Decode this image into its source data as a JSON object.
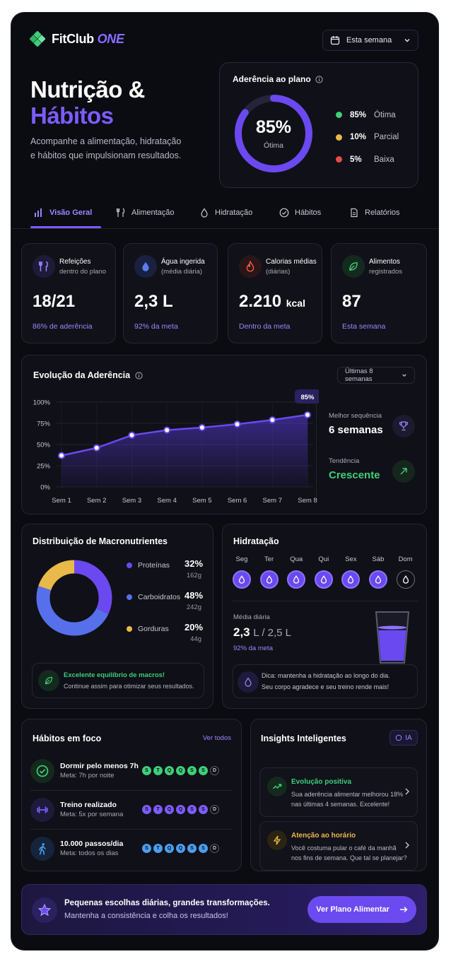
{
  "brand": {
    "name": "FitClub",
    "suffix": "ONE"
  },
  "period_select": {
    "value": "Esta semana"
  },
  "hero": {
    "title_line1": "Nutrição &",
    "title_line2": "Hábitos",
    "subtitle": "Acompanhe a alimentação, hidratação e hábitos que impulsionam resultados."
  },
  "adherence": {
    "title": "Aderência ao plano",
    "value": "85%",
    "value_label": "Ótima",
    "fraction": 0.85,
    "legend": [
      {
        "pct": "85%",
        "label": "Ótima",
        "color": "#3ecf7a"
      },
      {
        "pct": "10%",
        "label": "Parcial",
        "color": "#e9b949"
      },
      {
        "pct": "5%",
        "label": "Baixa",
        "color": "#e84a4a"
      }
    ]
  },
  "tabs": [
    "Visão Geral",
    "Alimentação",
    "Hidratação",
    "Hábitos",
    "Relatórios"
  ],
  "kpis": [
    {
      "title": "Refeições",
      "sub": "dentro do plano",
      "value": "18/21",
      "unit": "",
      "foot": "86% de aderência",
      "foot_color": "#9f86ff"
    },
    {
      "title": "Água ingerida",
      "sub": "(média diária)",
      "value": "2,3 L",
      "unit": "",
      "foot": "92% da meta",
      "foot_color": "#9f86ff"
    },
    {
      "title": "Calorias médias",
      "sub": "(diárias)",
      "value": "2.210",
      "unit": "kcal",
      "foot": "Dentro da meta",
      "foot_color": "#9f86ff"
    },
    {
      "title": "Alimentos",
      "sub": "registrados",
      "value": "87",
      "unit": "",
      "foot": "Esta semana",
      "foot_color": "#9f86ff"
    }
  ],
  "evolution": {
    "title": "Evolução da Aderência",
    "range": "Últimas 8 semanas",
    "best_label": "Melhor sequência",
    "best_value": "6 semanas",
    "trend_label": "Tendência",
    "trend_value": "Crescente",
    "callout": "85%"
  },
  "chart_data": {
    "type": "area",
    "categories": [
      "Sem 1",
      "Sem 2",
      "Sem 3",
      "Sem 4",
      "Sem 5",
      "Sem 6",
      "Sem 7",
      "Sem 8"
    ],
    "values": [
      37,
      46,
      61,
      67,
      70,
      74,
      79,
      85
    ],
    "y_ticks": [
      "0%",
      "25%",
      "50%",
      "75%",
      "100%"
    ],
    "ylim": [
      0,
      100
    ],
    "grid": true
  },
  "macros": {
    "title": "Distribuição de Macronutrientes",
    "items": [
      {
        "name": "Proteínas",
        "pct": "32%",
        "grams": "162g",
        "value": 32,
        "color": "#6a49f0"
      },
      {
        "name": "Carboidratos",
        "pct": "48%",
        "grams": "242g",
        "value": 48,
        "color": "#5670ec"
      },
      {
        "name": "Gorduras",
        "pct": "20%",
        "grams": "44g",
        "value": 20,
        "color": "#e9b949"
      }
    ],
    "tip_title": "Excelente equilíbrio de macros!",
    "tip_text": "Continue assim para otimizar seus resultados."
  },
  "hydration": {
    "title": "Hidratação",
    "days": [
      "Seg",
      "Ter",
      "Qua",
      "Qui",
      "Sex",
      "Sáb",
      "Dom"
    ],
    "done": [
      true,
      true,
      true,
      true,
      true,
      true,
      false
    ],
    "avg_label": "Média diária",
    "avg_value": "2,3",
    "avg_unit": "L / 2,5 L",
    "avg_foot": "92% da meta",
    "fill_fraction": 0.92,
    "tip_line1": "Dica: mantenha a hidratação ao longo do dia.",
    "tip_line2": "Seu corpo agradece e seu treino rende mais!"
  },
  "habits": {
    "title": "Hábitos em foco",
    "see_all": "Ver todos",
    "items": [
      {
        "name": "Dormir pelo menos 7h",
        "meta": "Meta: 7h por noite",
        "color": "#3ecf7a",
        "icon": "check-circle-icon",
        "days": [
          "S",
          "T",
          "Q",
          "Q",
          "S",
          "S",
          "D"
        ],
        "done": [
          true,
          true,
          true,
          true,
          true,
          true,
          false
        ]
      },
      {
        "name": "Treino realizado",
        "meta": "Meta: 5x por semana",
        "color": "#7c5cff",
        "icon": "dumbbell-icon",
        "days": [
          "S",
          "T",
          "Q",
          "Q",
          "S",
          "S",
          "D"
        ],
        "done": [
          true,
          true,
          true,
          true,
          true,
          true,
          false
        ]
      },
      {
        "name": "10.000 passos/dia",
        "meta": "Meta: todos os dias",
        "color": "#4a9ef0",
        "icon": "walking-icon",
        "days": [
          "S",
          "T",
          "Q",
          "Q",
          "S",
          "S",
          "D"
        ],
        "done": [
          true,
          true,
          true,
          true,
          true,
          true,
          false
        ]
      }
    ]
  },
  "insights": {
    "title": "Insights Inteligentes",
    "badge": "IA",
    "items": [
      {
        "title": "Evolução positiva",
        "text": "Sua aderência alimentar melhorou 18% nas últimas 4 semanas. Excelente!",
        "color": "#3ecf7a"
      },
      {
        "title": "Atenção ao horário",
        "text": "Você costuma pular o café da manhã nos fins de semana. Que tal se planejar?",
        "color": "#e9b949"
      }
    ]
  },
  "banner": {
    "line1": "Pequenas escolhas diárias, grandes transformações.",
    "line2": "Mantenha a consistência e colha os resultados!",
    "cta": "Ver Plano Alimentar"
  }
}
